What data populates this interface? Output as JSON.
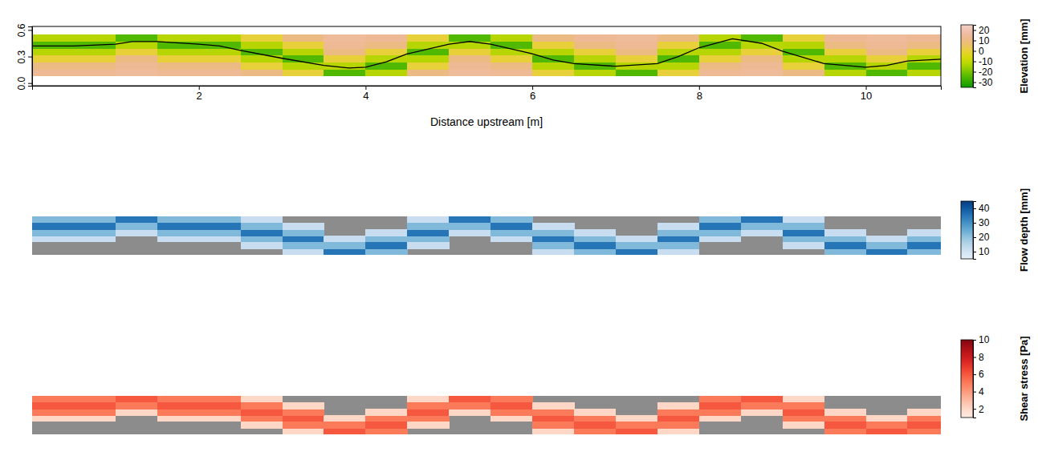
{
  "chart_data": [
    {
      "type": "heatmap",
      "xlabel": "Distance upstream [m]",
      "xlim": [
        0,
        10.9
      ],
      "ylim": [
        -0.03,
        0.64
      ],
      "xticks": [
        2,
        4,
        6,
        8,
        10
      ],
      "yticks": [
        {
          "value": 0,
          "label": "0.0"
        },
        {
          "value": 0.3,
          "label": "0.3"
        },
        {
          "value": 0.6,
          "label": "0.6"
        }
      ],
      "x_bins": [
        0,
        0.5,
        1,
        1.5,
        2,
        2.5,
        3,
        3.5,
        4,
        4.5,
        5,
        5.5,
        6,
        6.5,
        7,
        7.5,
        8,
        8.5,
        9,
        9.5,
        10,
        10.5,
        10.9
      ],
      "y_bins": [
        0.08,
        0.158,
        0.237,
        0.315,
        0.393,
        0.472,
        0.55
      ],
      "cells": [
        [
          14,
          14,
          15,
          14,
          14,
          10,
          0,
          -25,
          -12,
          10,
          15,
          14,
          0,
          -12,
          -25,
          0,
          14,
          15,
          10,
          -12,
          -25,
          -12
        ],
        [
          10,
          10,
          14,
          10,
          10,
          0,
          -12,
          -12,
          -25,
          0,
          14,
          10,
          -12,
          -25,
          -12,
          -12,
          10,
          14,
          0,
          -25,
          -12,
          -25
        ],
        [
          0,
          0,
          10,
          0,
          0,
          -12,
          -25,
          0,
          -12,
          -12,
          10,
          0,
          -25,
          -12,
          0,
          -25,
          0,
          10,
          -12,
          -12,
          0,
          -12
        ],
        [
          -12,
          -12,
          0,
          -12,
          -12,
          -25,
          -12,
          10,
          0,
          -25,
          0,
          -12,
          -12,
          0,
          10,
          -12,
          -12,
          0,
          -25,
          0,
          10,
          0
        ],
        [
          -25,
          -25,
          -12,
          -25,
          -25,
          -12,
          0,
          14,
          10,
          -12,
          -12,
          -25,
          0,
          10,
          14,
          0,
          -25,
          -12,
          -12,
          10,
          14,
          10
        ],
        [
          -12,
          -12,
          -25,
          -12,
          -12,
          0,
          10,
          15,
          14,
          0,
          -25,
          -12,
          10,
          14,
          15,
          10,
          -12,
          -25,
          0,
          14,
          15,
          14
        ]
      ],
      "colorbar": {
        "title": "Elevation [mm]",
        "range": [
          -35,
          25
        ],
        "ticks": [
          20,
          10,
          0,
          -10,
          -20,
          -30
        ]
      },
      "series": [
        {
          "color": "#000000",
          "x": [
            0,
            0.5,
            1.0,
            1.2,
            1.5,
            2.0,
            2.25,
            2.5,
            3.0,
            3.5,
            3.8,
            4.0,
            4.25,
            4.5,
            5.0,
            5.25,
            5.5,
            6.0,
            6.25,
            6.5,
            7.0,
            7.5,
            7.75,
            8.0,
            8.4,
            8.75,
            9.0,
            9.5,
            10.0,
            10.25,
            10.5,
            10.9
          ],
          "values": [
            0.42,
            0.42,
            0.44,
            0.47,
            0.47,
            0.44,
            0.42,
            0.37,
            0.28,
            0.2,
            0.17,
            0.18,
            0.24,
            0.33,
            0.44,
            0.47,
            0.44,
            0.33,
            0.26,
            0.22,
            0.19,
            0.22,
            0.3,
            0.4,
            0.5,
            0.45,
            0.36,
            0.22,
            0.18,
            0.2,
            0.25,
            0.27
          ]
        }
      ]
    },
    {
      "type": "heatmap",
      "tick_labels": false,
      "x_bins": [
        0,
        0.5,
        1,
        1.5,
        2,
        2.5,
        3,
        3.5,
        4,
        4.5,
        5,
        5.5,
        6,
        6.5,
        7,
        7.5,
        8,
        8.5,
        9,
        9.5,
        10,
        10.5,
        10.9
      ],
      "y_bins": [
        0.08,
        0.158,
        0.237,
        0.315,
        0.393,
        0.472,
        0.55
      ],
      "cells": [
        [
          null,
          null,
          null,
          null,
          null,
          null,
          12,
          35,
          22,
          null,
          null,
          null,
          12,
          22,
          35,
          12,
          null,
          null,
          null,
          22,
          35,
          22
        ],
        [
          null,
          null,
          null,
          null,
          null,
          12,
          22,
          22,
          35,
          12,
          null,
          null,
          22,
          35,
          22,
          22,
          null,
          null,
          12,
          35,
          22,
          35
        ],
        [
          12,
          12,
          null,
          12,
          12,
          22,
          35,
          12,
          22,
          22,
          null,
          12,
          35,
          22,
          12,
          35,
          12,
          null,
          22,
          22,
          12,
          22
        ],
        [
          22,
          22,
          12,
          22,
          22,
          35,
          22,
          null,
          12,
          35,
          12,
          22,
          22,
          12,
          null,
          22,
          22,
          12,
          35,
          12,
          null,
          12
        ],
        [
          35,
          35,
          22,
          35,
          35,
          22,
          12,
          null,
          null,
          22,
          22,
          35,
          12,
          null,
          null,
          12,
          35,
          22,
          22,
          null,
          null,
          null
        ],
        [
          22,
          22,
          35,
          22,
          22,
          12,
          null,
          null,
          null,
          12,
          35,
          22,
          null,
          null,
          null,
          null,
          22,
          35,
          12,
          null,
          null,
          null
        ]
      ],
      "colorbar": {
        "title": "Flow depth [mm]",
        "range": [
          5,
          45
        ],
        "ticks": [
          10,
          20,
          30,
          40
        ]
      }
    },
    {
      "type": "heatmap",
      "tick_labels": false,
      "x_bins": [
        0,
        0.5,
        1,
        1.5,
        2,
        2.5,
        3,
        3.5,
        4,
        4.5,
        5,
        5.5,
        6,
        6.5,
        7,
        7.5,
        8,
        8.5,
        9,
        9.5,
        10,
        10.5,
        10.9
      ],
      "y_bins": [
        0.08,
        0.158,
        0.237,
        0.315,
        0.393,
        0.472,
        0.55
      ],
      "cells": [
        [
          null,
          null,
          null,
          null,
          null,
          null,
          2,
          6,
          5,
          null,
          null,
          null,
          2,
          5,
          6,
          2,
          null,
          null,
          null,
          5,
          6,
          5
        ],
        [
          null,
          null,
          null,
          null,
          null,
          2,
          5,
          5,
          6,
          2,
          null,
          null,
          5,
          6,
          5,
          5,
          null,
          null,
          2,
          6,
          5,
          6
        ],
        [
          2,
          2,
          null,
          2,
          2,
          5,
          6,
          2,
          5,
          5,
          null,
          2,
          6,
          5,
          2,
          6,
          2,
          null,
          5,
          5,
          2,
          5
        ],
        [
          5,
          5,
          2,
          5,
          5,
          6,
          5,
          null,
          2,
          6,
          2,
          5,
          5,
          2,
          null,
          5,
          5,
          2,
          6,
          2,
          null,
          2
        ],
        [
          6,
          6,
          5,
          6,
          6,
          5,
          2,
          null,
          null,
          5,
          5,
          6,
          2,
          null,
          null,
          2,
          6,
          5,
          5,
          null,
          null,
          null
        ],
        [
          5,
          5,
          6,
          5,
          5,
          2,
          null,
          null,
          null,
          2,
          6,
          5,
          null,
          null,
          null,
          null,
          5,
          6,
          2,
          null,
          null,
          null
        ]
      ],
      "colorbar": {
        "title": "Shear stress [Pa]",
        "range": [
          1,
          10
        ],
        "ticks": [
          2,
          4,
          6,
          8,
          10
        ]
      }
    }
  ]
}
